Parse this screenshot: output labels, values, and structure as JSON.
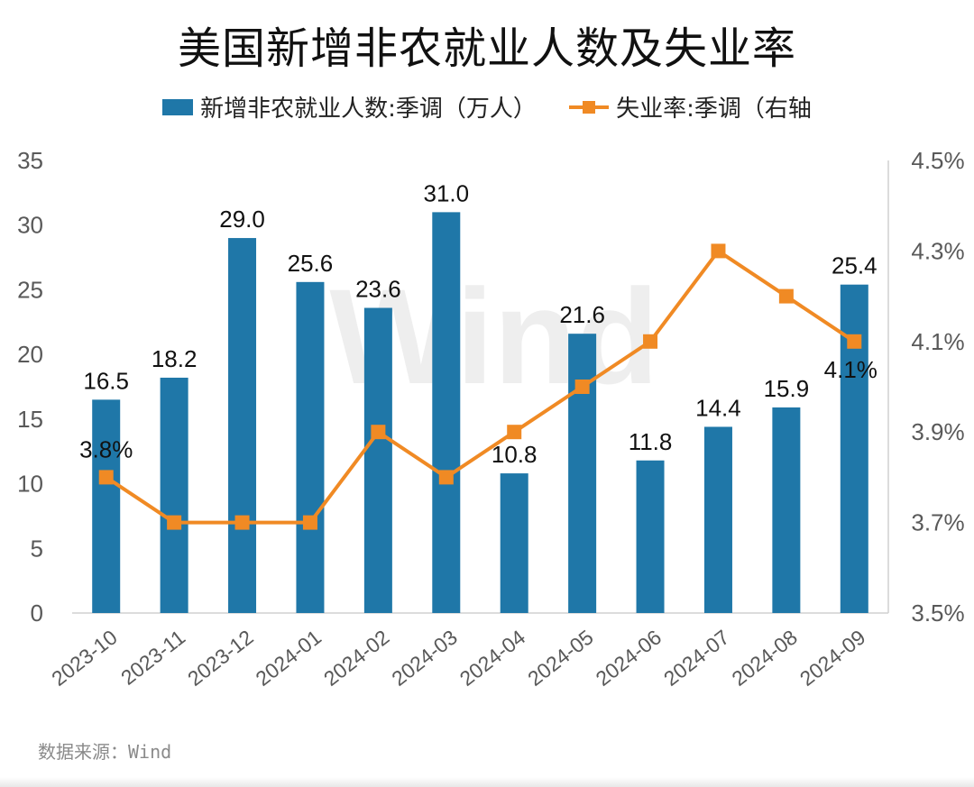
{
  "chart_data": {
    "type": "bar+line",
    "title": "美国新增非农就业人数及失业率",
    "categories": [
      "2023-10",
      "2023-11",
      "2023-12",
      "2024-01",
      "2024-02",
      "2024-03",
      "2024-04",
      "2024-05",
      "2024-06",
      "2024-07",
      "2024-08",
      "2024-09"
    ],
    "series": [
      {
        "name": "新增非农就业人数:季调（万人）",
        "type": "bar",
        "axis": "left",
        "color": "#1f77a8",
        "values": [
          16.5,
          18.2,
          29.0,
          25.6,
          23.6,
          31.0,
          10.8,
          21.6,
          11.8,
          14.4,
          15.9,
          25.4
        ],
        "labels": [
          "16.5",
          "18.2",
          "29.0",
          "25.6",
          "23.6",
          "31.0",
          "10.8",
          "21.6",
          "11.8",
          "14.4",
          "15.9",
          "25.4"
        ]
      },
      {
        "name": "失业率:季调（右轴",
        "type": "line",
        "axis": "right",
        "color": "#f08a24",
        "values": [
          3.8,
          3.7,
          3.7,
          3.7,
          3.9,
          3.8,
          3.9,
          4.0,
          4.1,
          4.3,
          4.2,
          4.1
        ],
        "point_labels": [
          {
            "index": 0,
            "text": "3.8%"
          },
          {
            "index": 11,
            "text": "4.1%"
          }
        ]
      }
    ],
    "y_left": {
      "min": 0,
      "max": 35,
      "ticks": [
        0,
        5,
        10,
        15,
        20,
        25,
        30,
        35
      ],
      "tick_labels": [
        "0",
        "5",
        "10",
        "15",
        "20",
        "25",
        "30",
        "35"
      ]
    },
    "y_right": {
      "min": 3.5,
      "max": 4.5,
      "ticks": [
        3.5,
        3.7,
        3.9,
        4.1,
        4.3,
        4.5
      ],
      "tick_labels": [
        "3.5%",
        "3.7%",
        "3.9%",
        "4.1%",
        "4.3%",
        "4.5%"
      ]
    },
    "grid": false,
    "legend_position": "top-center",
    "watermark": "Wind"
  },
  "source": "数据来源：Wind"
}
